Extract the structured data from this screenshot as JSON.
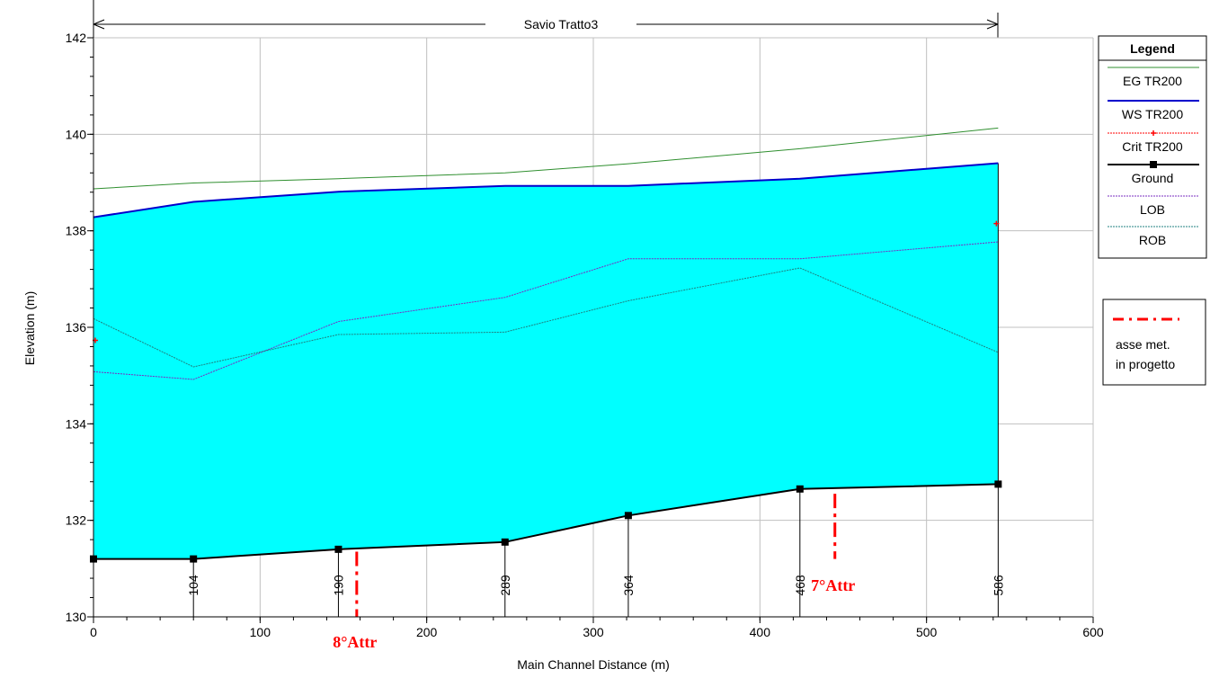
{
  "chart_data": {
    "type": "area",
    "title": "Savio Tratto3",
    "xlabel": "Main Channel Distance (m)",
    "ylabel": "Elevation (m)",
    "xlim": [
      0,
      600
    ],
    "ylim": [
      130,
      142
    ],
    "x_ticks": [
      0,
      100,
      200,
      300,
      400,
      500,
      600
    ],
    "y_ticks": [
      130,
      132,
      134,
      136,
      138,
      140,
      142
    ],
    "grid": true,
    "legend_position": "right",
    "legend_title": "Legend",
    "series": [
      {
        "name": "EG TR200",
        "color": "#2f8f2f",
        "x": [
          0,
          60,
          147,
          247,
          321,
          424,
          543
        ],
        "values": [
          138.87,
          138.99,
          139.08,
          139.2,
          139.39,
          139.7,
          140.13
        ]
      },
      {
        "name": "WS TR200",
        "color": "#0000cc",
        "x": [
          0,
          60,
          147,
          247,
          321,
          424,
          543
        ],
        "values": [
          138.28,
          138.6,
          138.81,
          138.93,
          138.93,
          139.08,
          139.4
        ]
      },
      {
        "name": "Crit TR200",
        "color": "#ff0000",
        "x": [
          0,
          543
        ],
        "values": [
          135.73,
          138.15
        ]
      },
      {
        "name": "Ground",
        "color": "#000000",
        "x": [
          0,
          60,
          147,
          247,
          321,
          424,
          543
        ],
        "values": [
          131.2,
          131.2,
          131.4,
          131.55,
          132.1,
          132.65,
          132.75
        ]
      },
      {
        "name": "LOB",
        "color": "#7a2fc0",
        "x": [
          0,
          60,
          147,
          247,
          321,
          424,
          543
        ],
        "values": [
          135.08,
          134.92,
          136.12,
          136.62,
          137.42,
          137.42,
          137.77
        ]
      },
      {
        "name": "ROB",
        "color": "#208080",
        "x": [
          0,
          60,
          147,
          247,
          321,
          424,
          543
        ],
        "values": [
          136.18,
          135.18,
          135.85,
          135.9,
          136.55,
          137.23,
          135.48
        ]
      }
    ],
    "water_fill_color": "#00ffff",
    "station_labels": [
      {
        "x": 60,
        "label": "104"
      },
      {
        "x": 147,
        "label": "190"
      },
      {
        "x": 247,
        "label": "289"
      },
      {
        "x": 321,
        "label": "364"
      },
      {
        "x": 424,
        "label": "468"
      },
      {
        "x": 543,
        "label": "586"
      }
    ],
    "annotations": [
      {
        "label": "8°Attr",
        "x": 158
      },
      {
        "label": "7°Attr",
        "x": 445
      }
    ],
    "second_legend": {
      "label_line1": "asse met.",
      "label_line2": "in progetto",
      "color": "#ff0000"
    }
  }
}
